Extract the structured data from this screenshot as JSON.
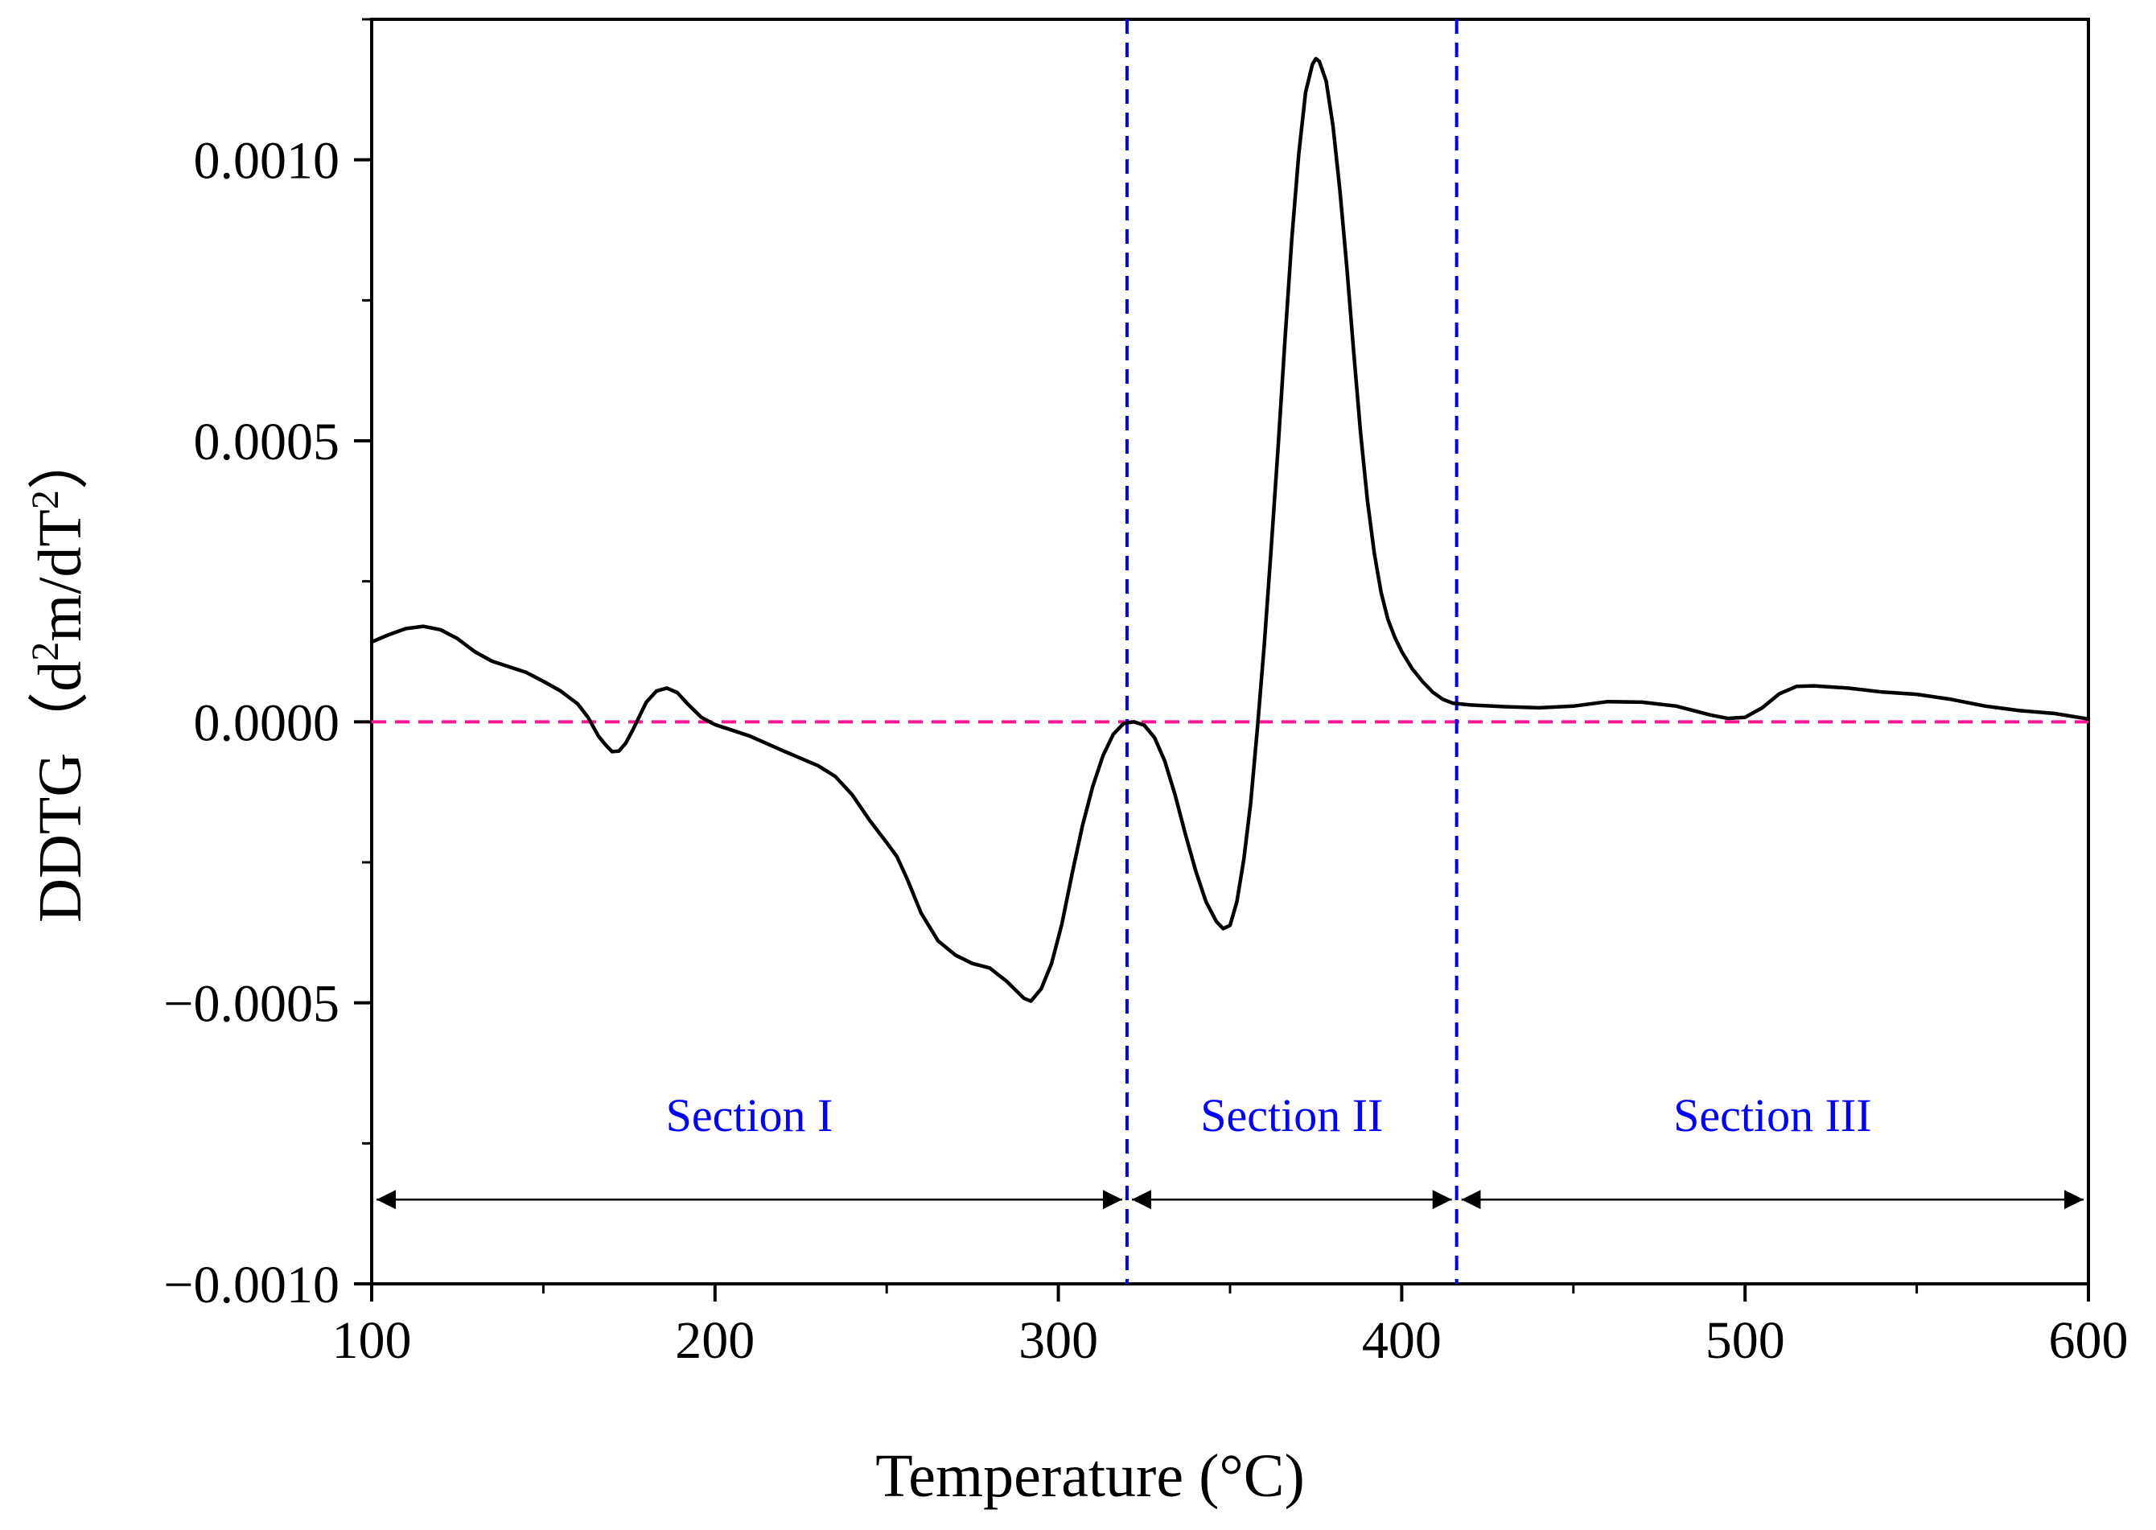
{
  "chart_data": {
    "type": "line",
    "title": "",
    "xlabel": "Temperature (°C)",
    "ylabel": "DDTG（d²m/dT²）",
    "ylabel_parts": {
      "prefix": "DDTG（d",
      "sup1": "2",
      "middle": "m/dT",
      "sup2": "2",
      "suffix": "）"
    },
    "xlim": [
      100,
      600
    ],
    "ylim": [
      -0.001,
      0.00125
    ],
    "xticks": [
      100,
      200,
      300,
      400,
      500,
      600
    ],
    "xtick_labels": [
      "100",
      "200",
      "300",
      "400",
      "500",
      "600"
    ],
    "yticks": [
      -0.001,
      -0.0005,
      0.0,
      0.0005,
      0.001
    ],
    "ytick_labels": [
      "−0.0010",
      "−0.0005",
      "0.0000",
      "0.0005",
      "0.0010"
    ],
    "series": [
      {
        "name": "DDTG",
        "color": "#000000",
        "points": [
          [
            100,
            0.000142
          ],
          [
            105,
            0.000155
          ],
          [
            110,
            0.000166
          ],
          [
            115,
            0.00017
          ],
          [
            120,
            0.000164
          ],
          [
            125,
            0.000148
          ],
          [
            130,
            0.000125
          ],
          [
            135,
            0.000108
          ],
          [
            140,
            9.8e-05
          ],
          [
            145,
            8.8e-05
          ],
          [
            150,
            7.2e-05
          ],
          [
            155,
            5.5e-05
          ],
          [
            160,
            3.2e-05
          ],
          [
            163,
            8e-06
          ],
          [
            166,
            -2.5e-05
          ],
          [
            168,
            -4e-05
          ],
          [
            170,
            -5.3e-05
          ],
          [
            172,
            -5.2e-05
          ],
          [
            174,
            -3.8e-05
          ],
          [
            176,
            -1.5e-05
          ],
          [
            178,
            1e-05
          ],
          [
            180,
            3.5e-05
          ],
          [
            183,
            5.5e-05
          ],
          [
            186,
            6e-05
          ],
          [
            189,
            5.2e-05
          ],
          [
            192,
            3.2e-05
          ],
          [
            196,
            8e-06
          ],
          [
            200,
            -5e-06
          ],
          [
            210,
            -2.5e-05
          ],
          [
            220,
            -5.2e-05
          ],
          [
            230,
            -7.8e-05
          ],
          [
            235,
            -9.7e-05
          ],
          [
            240,
            -0.00013
          ],
          [
            245,
            -0.000175
          ],
          [
            250,
            -0.000215
          ],
          [
            253,
            -0.00024
          ],
          [
            256,
            -0.00028
          ],
          [
            260,
            -0.00034
          ],
          [
            265,
            -0.00039
          ],
          [
            270,
            -0.000415
          ],
          [
            275,
            -0.00043
          ],
          [
            280,
            -0.000438
          ],
          [
            285,
            -0.000462
          ],
          [
            290,
            -0.000492
          ],
          [
            292,
            -0.000497
          ],
          [
            295,
            -0.000475
          ],
          [
            298,
            -0.00043
          ],
          [
            301,
            -0.00036
          ],
          [
            304,
            -0.00027
          ],
          [
            307,
            -0.000185
          ],
          [
            310,
            -0.000115
          ],
          [
            313,
            -6e-05
          ],
          [
            316,
            -2.2e-05
          ],
          [
            319,
            -3e-06
          ],
          [
            322,
            0.0
          ],
          [
            325,
            -6e-06
          ],
          [
            328,
            -2.8e-05
          ],
          [
            331,
            -7e-05
          ],
          [
            334,
            -0.00013
          ],
          [
            337,
            -0.0002
          ],
          [
            340,
            -0.000265
          ],
          [
            343,
            -0.00032
          ],
          [
            346,
            -0.000355
          ],
          [
            348,
            -0.000368
          ],
          [
            350,
            -0.000362
          ],
          [
            352,
            -0.00032
          ],
          [
            354,
            -0.000245
          ],
          [
            356,
            -0.000145
          ],
          [
            358,
            -1e-05
          ],
          [
            360,
            0.00014
          ],
          [
            362,
            0.00031
          ],
          [
            364,
            0.00049
          ],
          [
            366,
            0.00068
          ],
          [
            368,
            0.00086
          ],
          [
            370,
            0.00101
          ],
          [
            372,
            0.00112
          ],
          [
            374,
            0.00117
          ],
          [
            375,
            0.00118
          ],
          [
            376,
            0.001175
          ],
          [
            378,
            0.00114
          ],
          [
            380,
            0.00106
          ],
          [
            382,
            0.000945
          ],
          [
            384,
            0.00081
          ],
          [
            386,
            0.00066
          ],
          [
            388,
            0.000515
          ],
          [
            390,
            0.000395
          ],
          [
            392,
            0.0003
          ],
          [
            394,
            0.00023
          ],
          [
            396,
            0.000182
          ],
          [
            398,
            0.00015
          ],
          [
            400,
            0.000125
          ],
          [
            403,
            9.5e-05
          ],
          [
            406,
            7.2e-05
          ],
          [
            409,
            5.3e-05
          ],
          [
            412,
            4e-05
          ],
          [
            415,
            3.3e-05
          ],
          [
            420,
            3e-05
          ],
          [
            430,
            2.7e-05
          ],
          [
            440,
            2.5e-05
          ],
          [
            450,
            2.8e-05
          ],
          [
            460,
            3.6e-05
          ],
          [
            470,
            3.5e-05
          ],
          [
            480,
            2.8e-05
          ],
          [
            490,
            1.2e-05
          ],
          [
            495,
            6e-06
          ],
          [
            500,
            8e-06
          ],
          [
            505,
            2.5e-05
          ],
          [
            510,
            5e-05
          ],
          [
            515,
            6.3e-05
          ],
          [
            520,
            6.4e-05
          ],
          [
            530,
            6e-05
          ],
          [
            540,
            5.3e-05
          ],
          [
            550,
            4.9e-05
          ],
          [
            560,
            4e-05
          ],
          [
            570,
            2.8e-05
          ],
          [
            580,
            2e-05
          ],
          [
            590,
            1.5e-05
          ],
          [
            600,
            5e-06
          ]
        ]
      }
    ],
    "reference_lines": {
      "zero_line": {
        "y": 0.0,
        "color": "#ff1493",
        "style": "dashed"
      },
      "section_boundaries": [
        {
          "x": 320,
          "color": "#0000ff",
          "style": "dashed"
        },
        {
          "x": 416,
          "color": "#0000ff",
          "style": "dashed"
        }
      ]
    },
    "sections": [
      {
        "label": "Section I",
        "x_start": 100,
        "x_end": 320,
        "label_color": "#0000ff"
      },
      {
        "label": "Section II",
        "x_start": 320,
        "x_end": 416,
        "label_color": "#0000ff"
      },
      {
        "label": "Section III",
        "x_start": 416,
        "x_end": 600,
        "label_color": "#0000ff"
      }
    ],
    "section_arrow_y": -0.00085,
    "legend": "none",
    "grid": false
  }
}
